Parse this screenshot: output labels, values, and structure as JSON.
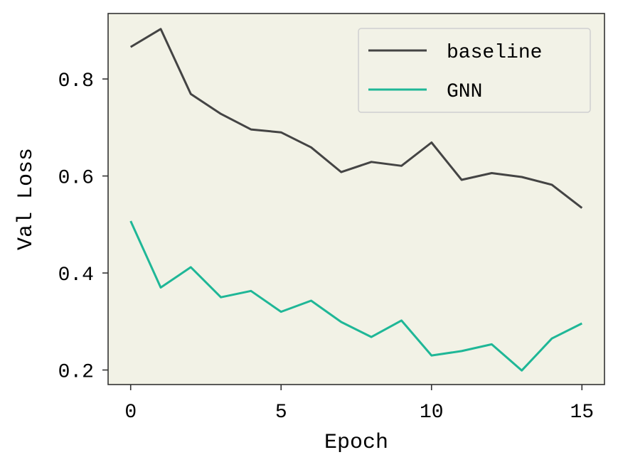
{
  "chart_data": {
    "type": "line",
    "title": "",
    "xlabel": "Epoch",
    "ylabel": "Val Loss",
    "x": [
      0,
      1,
      2,
      3,
      4,
      5,
      6,
      7,
      8,
      9,
      10,
      11,
      12,
      13,
      14,
      15
    ],
    "xlim": [
      -0.75,
      15.75
    ],
    "ylim": [
      0.17,
      0.935
    ],
    "xticks": [
      0,
      5,
      10,
      15
    ],
    "xtick_labels": [
      "0",
      "5",
      "10",
      "15"
    ],
    "yticks": [
      0.2,
      0.4,
      0.6,
      0.8
    ],
    "ytick_labels": [
      "0.2",
      "0.4",
      "0.6",
      "0.8"
    ],
    "grid": false,
    "legend_position": "top-right",
    "background_color": "#f2f2e6",
    "series": [
      {
        "name": "baseline",
        "color": "#444444",
        "values": [
          0.866,
          0.903,
          0.769,
          0.728,
          0.696,
          0.69,
          0.659,
          0.608,
          0.629,
          0.621,
          0.669,
          0.592,
          0.606,
          0.598,
          0.582,
          0.534
        ]
      },
      {
        "name": "GNN",
        "color": "#1fb797",
        "values": [
          0.507,
          0.37,
          0.412,
          0.35,
          0.363,
          0.32,
          0.343,
          0.299,
          0.268,
          0.302,
          0.23,
          0.239,
          0.253,
          0.199,
          0.265,
          0.296
        ]
      }
    ]
  }
}
